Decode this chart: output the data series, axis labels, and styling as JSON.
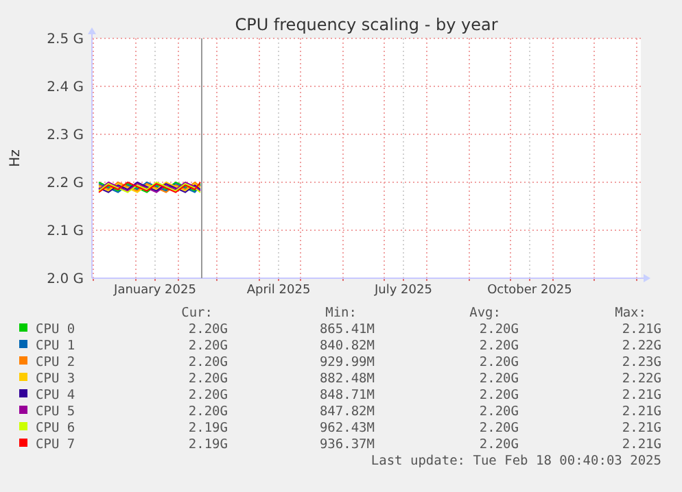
{
  "chart_data": {
    "type": "line",
    "title": "CPU frequency scaling - by year",
    "ylabel": "Hz",
    "x": [
      "2024-12-05",
      "2024-12-12",
      "2024-12-19",
      "2024-12-26",
      "2025-01-02",
      "2025-01-09",
      "2025-01-16",
      "2025-01-23",
      "2025-01-30",
      "2025-02-06",
      "2025-02-13",
      "2025-02-17"
    ],
    "xlim": [
      "2024-11-30",
      "2026-01-04"
    ],
    "xticks": [
      {
        "value": "2024-12-01",
        "label": null
      },
      {
        "value": "2025-01-01",
        "label": null
      },
      {
        "value": "2025-01-15",
        "label": "January 2025"
      },
      {
        "value": "2025-02-01",
        "label": null
      },
      {
        "value": "2025-03-01",
        "label": null
      },
      {
        "value": "2025-04-01",
        "label": null
      },
      {
        "value": "2025-04-15",
        "label": "April 2025"
      },
      {
        "value": "2025-05-01",
        "label": null
      },
      {
        "value": "2025-06-01",
        "label": null
      },
      {
        "value": "2025-07-01",
        "label": null
      },
      {
        "value": "2025-07-15",
        "label": "July 2025"
      },
      {
        "value": "2025-08-01",
        "label": null
      },
      {
        "value": "2025-09-01",
        "label": null
      },
      {
        "value": "2025-10-01",
        "label": null
      },
      {
        "value": "2025-10-15",
        "label": "October 2025"
      },
      {
        "value": "2025-11-01",
        "label": null
      },
      {
        "value": "2025-12-01",
        "label": null
      },
      {
        "value": "2026-01-01",
        "label": null
      }
    ],
    "ylim": [
      2.0,
      2.5
    ],
    "yticks": [
      {
        "value": 2.0,
        "label": "2.0 G"
      },
      {
        "value": 2.1,
        "label": "2.1 G"
      },
      {
        "value": 2.2,
        "label": "2.2 G"
      },
      {
        "value": 2.3,
        "label": "2.3 G"
      },
      {
        "value": 2.4,
        "label": "2.4 G"
      },
      {
        "value": 2.5,
        "label": "2.5 G"
      }
    ],
    "grid": true,
    "legend": "bottom",
    "marker": "none",
    "line_style": "solid",
    "ref_lines": [
      {
        "axis": "x",
        "value": "2025-02-18",
        "color": "#999999"
      }
    ],
    "series": [
      {
        "name": "CPU 0",
        "color": "#00cc00",
        "values": [
          2.2,
          2.191,
          2.182,
          2.197,
          2.188,
          2.179,
          2.194,
          2.185,
          2.2,
          2.191,
          2.182,
          2.197
        ]
      },
      {
        "name": "CPU 1",
        "color": "#0066b3",
        "values": [
          2.197,
          2.188,
          2.179,
          2.194,
          2.185,
          2.2,
          2.191,
          2.182,
          2.197,
          2.188,
          2.179,
          2.194
        ]
      },
      {
        "name": "CPU 2",
        "color": "#ff8000",
        "values": [
          2.194,
          2.185,
          2.2,
          2.191,
          2.182,
          2.197,
          2.188,
          2.179,
          2.194,
          2.185,
          2.2,
          2.191
        ]
      },
      {
        "name": "CPU 3",
        "color": "#ffcc00",
        "values": [
          2.191,
          2.182,
          2.197,
          2.188,
          2.179,
          2.194,
          2.185,
          2.2,
          2.191,
          2.182,
          2.197,
          2.188
        ]
      },
      {
        "name": "CPU 4",
        "color": "#330099",
        "values": [
          2.188,
          2.179,
          2.194,
          2.185,
          2.2,
          2.191,
          2.182,
          2.197,
          2.188,
          2.179,
          2.194,
          2.185
        ]
      },
      {
        "name": "CPU 5",
        "color": "#990099",
        "values": [
          2.185,
          2.2,
          2.191,
          2.182,
          2.197,
          2.188,
          2.179,
          2.194,
          2.185,
          2.2,
          2.191,
          2.182
        ]
      },
      {
        "name": "CPU 6",
        "color": "#ccff00",
        "values": [
          2.182,
          2.197,
          2.188,
          2.179,
          2.194,
          2.185,
          2.2,
          2.191,
          2.182,
          2.197,
          2.188,
          2.179
        ]
      },
      {
        "name": "CPU 7",
        "color": "#ff0000",
        "values": [
          2.179,
          2.194,
          2.185,
          2.2,
          2.191,
          2.182,
          2.197,
          2.188,
          2.179,
          2.194,
          2.185,
          2.2
        ]
      }
    ],
    "annotations": [
      "Cur:",
      "Min:",
      "Avg:",
      "Max:",
      "2.20G",
      "865.41M",
      "2.20G",
      "2.21G",
      "2.20G",
      "840.82M",
      "2.20G",
      "2.22G",
      "2.20G",
      "929.99M",
      "2.20G",
      "2.23G",
      "2.20G",
      "882.48M",
      "2.20G",
      "2.22G",
      "2.20G",
      "848.71M",
      "2.20G",
      "2.21G",
      "2.20G",
      "847.82M",
      "2.20G",
      "2.21G",
      "2.19G",
      "962.43M",
      "2.20G",
      "2.21G",
      "2.19G",
      "936.37M",
      "2.20G",
      "2.21G",
      "Last update: Tue Feb 18 00:40:03 2025"
    ]
  }
}
